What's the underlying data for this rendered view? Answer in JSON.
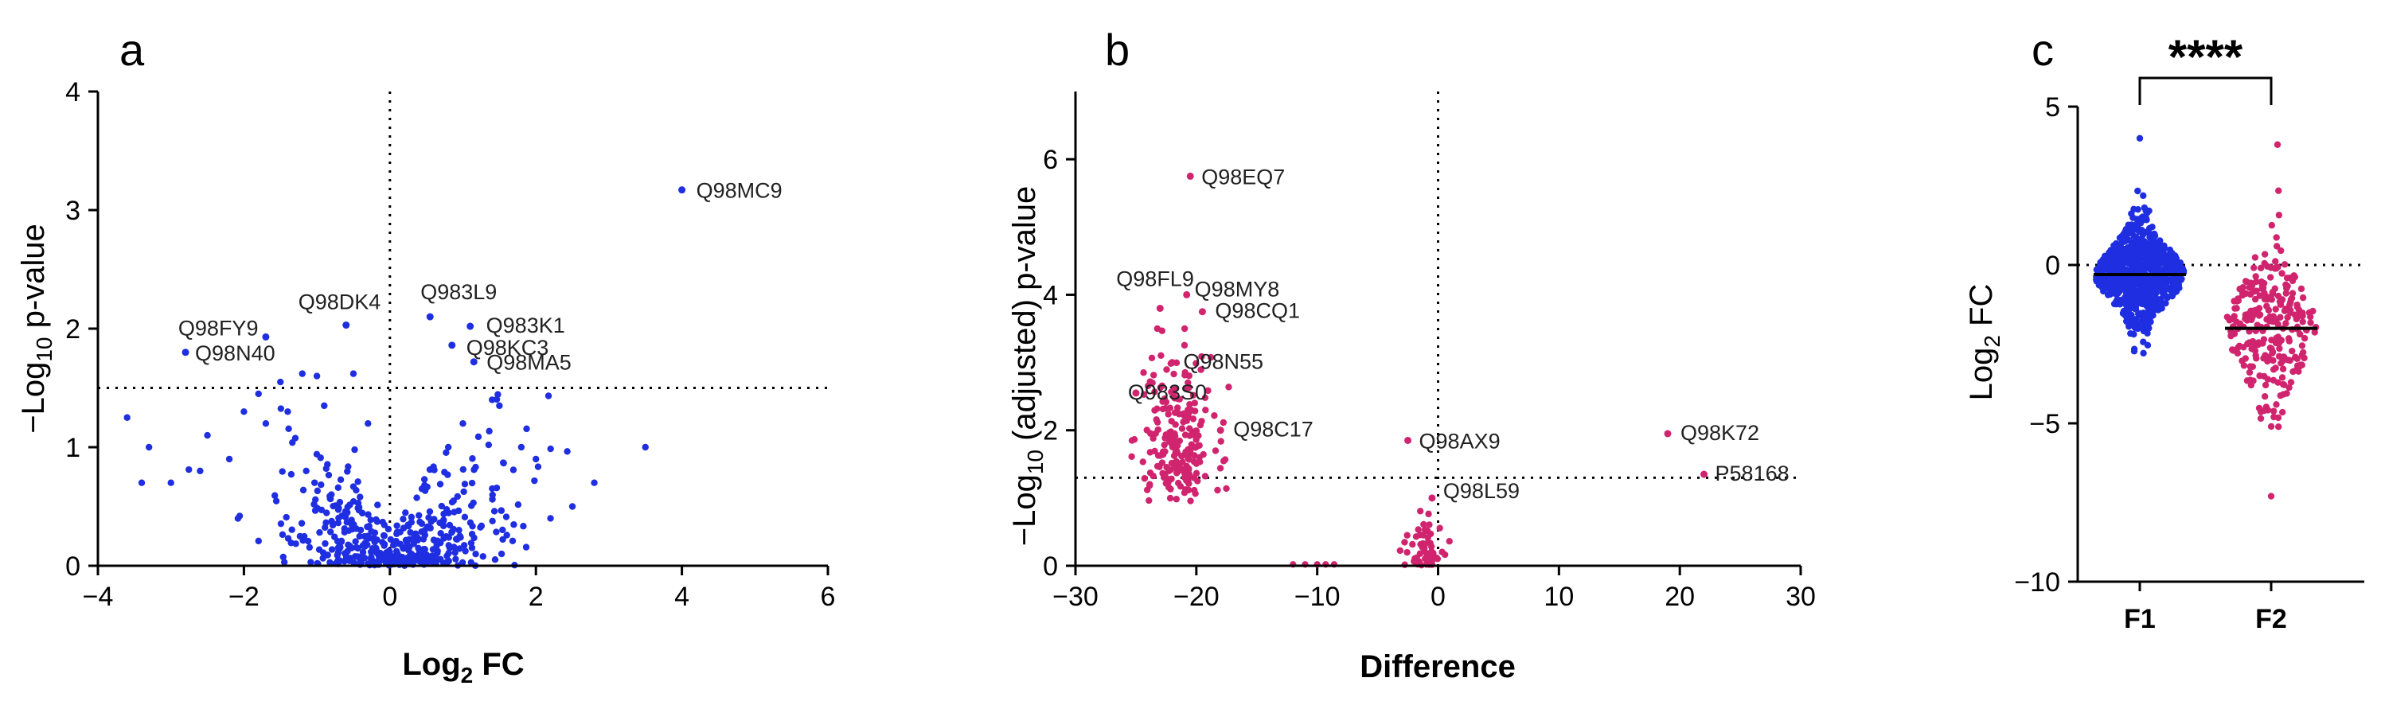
{
  "chart_data": [
    {
      "panel": "a",
      "type": "scatter",
      "xlabel": "Log2 FC",
      "ylabel": "−Log10 p-value",
      "xlim": [
        -4,
        6
      ],
      "ylim": [
        0,
        4
      ],
      "xticks": [
        -4,
        -2,
        0,
        2,
        4,
        6
      ],
      "yticks": [
        0,
        1,
        2,
        3,
        4
      ],
      "thresholds": {
        "x": 0,
        "y": 1.5
      },
      "color": "#1f2ee0",
      "labeled_points": [
        {
          "label": "Q98MC9",
          "x": 4.0,
          "y": 3.17
        },
        {
          "label": "Q983L9",
          "x": 0.55,
          "y": 2.1
        },
        {
          "label": "Q98DK4",
          "x": -0.6,
          "y": 2.03
        },
        {
          "label": "Q98FY9",
          "x": -1.7,
          "y": 1.93
        },
        {
          "label": "Q983K1",
          "x": 1.1,
          "y": 2.02
        },
        {
          "label": "Q98KC3",
          "x": 0.85,
          "y": 1.86
        },
        {
          "label": "Q98N40",
          "x": -2.8,
          "y": 1.8
        },
        {
          "label": "Q98MA5",
          "x": 1.15,
          "y": 1.72
        }
      ],
      "background_points": {
        "n": 430,
        "description": "unlabeled proteins, volcano-shaped cloud around x=0",
        "extra": [
          [
            -3.6,
            1.25
          ],
          [
            -3.3,
            1.0
          ],
          [
            -3.0,
            0.7
          ],
          [
            -2.5,
            1.1
          ],
          [
            -2.2,
            0.9
          ],
          [
            -2.0,
            1.3
          ],
          [
            -1.8,
            1.45
          ],
          [
            -1.5,
            1.55
          ],
          [
            -1.2,
            1.62
          ],
          [
            -1.0,
            1.6
          ],
          [
            -0.5,
            1.62
          ],
          [
            -0.9,
            1.35
          ],
          [
            -1.4,
            1.3
          ],
          [
            1.4,
            1.4
          ],
          [
            1.5,
            1.35
          ],
          [
            1.8,
            1.0
          ],
          [
            2.0,
            0.9
          ],
          [
            2.2,
            0.4
          ],
          [
            2.5,
            0.5
          ],
          [
            2.8,
            0.7
          ],
          [
            3.5,
            1.0
          ],
          [
            1.0,
            1.2
          ],
          [
            0.8,
            1.0
          ],
          [
            -2.6,
            0.8
          ],
          [
            -3.4,
            0.7
          ],
          [
            -1.7,
            1.2
          ],
          [
            -0.3,
            1.2
          ]
        ]
      }
    },
    {
      "panel": "b",
      "type": "scatter",
      "xlabel": "Difference",
      "ylabel": "−Log10 (adjusted) p-value",
      "xlim": [
        -30,
        30
      ],
      "ylim": [
        0,
        7
      ],
      "xticks": [
        -30,
        -20,
        -10,
        0,
        10,
        20,
        30
      ],
      "yticks": [
        0,
        2,
        4,
        6
      ],
      "thresholds": {
        "x": 0,
        "y": 1.3
      },
      "color": "#d1246e",
      "labeled_points": [
        {
          "label": "Q98EQ7",
          "x": -20.5,
          "y": 5.75
        },
        {
          "label": "Q98FL9",
          "x": -23.0,
          "y": 3.8
        },
        {
          "label": "Q98MY8",
          "x": -20.8,
          "y": 4.0
        },
        {
          "label": "Q98CQ1",
          "x": -19.5,
          "y": 3.75
        },
        {
          "label": "Q98N55",
          "x": -22.0,
          "y": 3.0
        },
        {
          "label": "Q983S0",
          "x": -25.0,
          "y": 2.55
        },
        {
          "label": "Q98C17",
          "x": -18.0,
          "y": 2.0
        },
        {
          "label": "Q98AX9",
          "x": -2.5,
          "y": 1.85
        },
        {
          "label": "Q98K72",
          "x": 19.0,
          "y": 1.95
        },
        {
          "label": "P58168",
          "x": 22.0,
          "y": 1.35
        },
        {
          "label": "Q98L59",
          "x": -0.5,
          "y": 1.0
        }
      ],
      "background_points": {
        "description": "main cluster around difference -21; small cluster near 0; few near -10"
      }
    },
    {
      "panel": "c",
      "type": "beeswarm",
      "ylabel": "Log2 FC",
      "categories": [
        "F1",
        "F2"
      ],
      "ylim": [
        -10,
        5
      ],
      "yticks": [
        -10,
        -5,
        0,
        5
      ],
      "reference_line": 0,
      "medians": [
        -0.3,
        -2.0
      ],
      "colors": [
        "#1f2ee0",
        "#d1246e"
      ],
      "ranges": [
        [
          -3.5,
          4.0
        ],
        [
          -7.3,
          3.8
        ]
      ],
      "significance": "****"
    }
  ],
  "panel_letters": [
    "a",
    "b",
    "c"
  ],
  "labels": {
    "a_x_main": "Log",
    "a_x_sub": "2",
    "a_x_tail": " FC",
    "a_y_head": "−Log",
    "a_y_sub": "10",
    "a_y_tail": " p-value",
    "b_x": "Difference",
    "b_y_head": "−Log",
    "b_y_sub": "10",
    "b_y_tail": " (adjusted) p-value",
    "c_y_head": "Log",
    "c_y_sub": "2",
    "c_y_tail": " FC"
  }
}
